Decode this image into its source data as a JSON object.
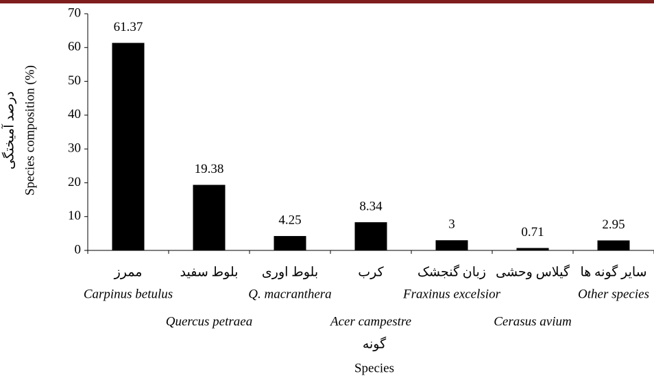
{
  "chart_data": {
    "type": "bar",
    "categories": [
      "ممرز",
      "بلوط سفید",
      "بلوط اوری",
      "کرب",
      "زبان گنجشک",
      "گیلاس وحشی",
      "سایر گونه ها"
    ],
    "categories_latin": [
      "Carpinus betulus",
      "Quercus petraea",
      "Q. macranthera",
      "Acer campestre",
      "Fraxinus excelsior",
      "Cerasus avium",
      "Other species"
    ],
    "values": [
      61.37,
      19.38,
      4.25,
      8.34,
      3,
      0.71,
      2.95
    ],
    "color": "#000000",
    "ylim": [
      0,
      70
    ],
    "yticks": [
      0,
      10,
      20,
      30,
      40,
      50,
      60,
      70
    ],
    "y_label": [
      "درصد آمیختگی",
      "Species composition (%)"
    ],
    "x_label": [
      "گونه",
      "Species"
    ],
    "grid": false
  }
}
